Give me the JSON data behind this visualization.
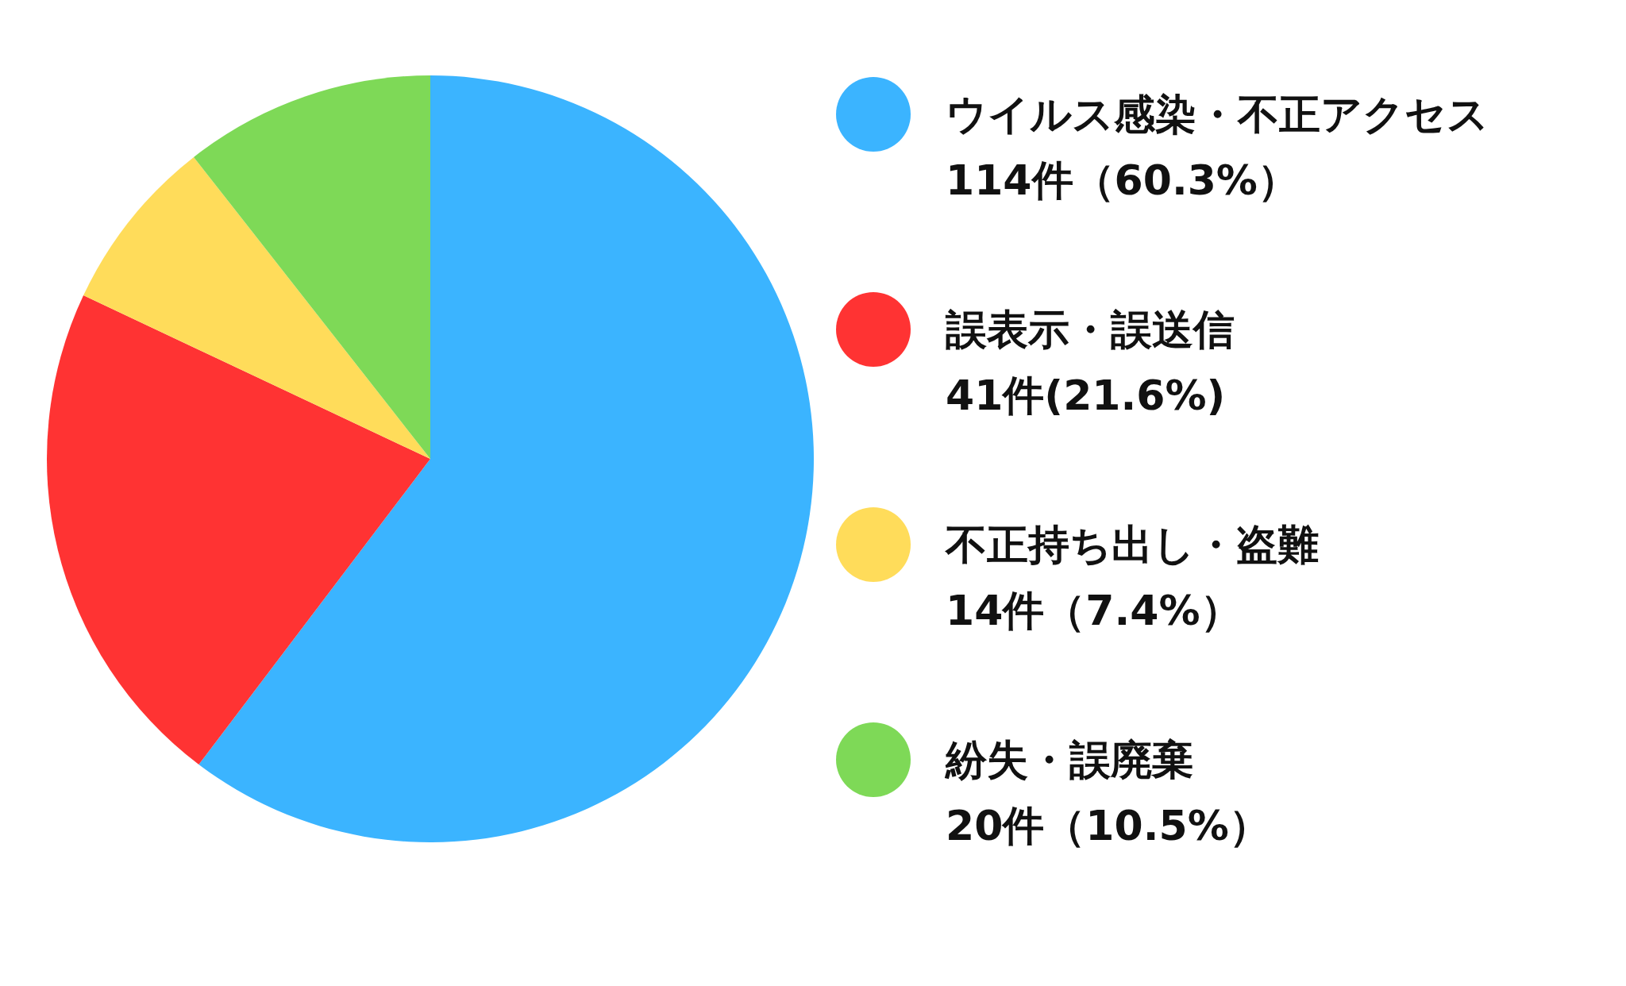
{
  "chart_data": {
    "type": "pie",
    "categories": [
      "ウイルス感染・不正アクセス",
      "誤表示・誤送信",
      "不正持ち出し・盗難",
      "紛失・誤廃棄"
    ],
    "values": [
      114,
      41,
      14,
      20
    ],
    "colors": [
      "#3bb4ff",
      "#ff3333",
      "#ffdc5a",
      "#7ed957"
    ],
    "value_labels": [
      "114件（60.3%）",
      "41件(21.6%)",
      "14件（7.4%）",
      "20件（10.5%）"
    ],
    "legend": "right"
  }
}
